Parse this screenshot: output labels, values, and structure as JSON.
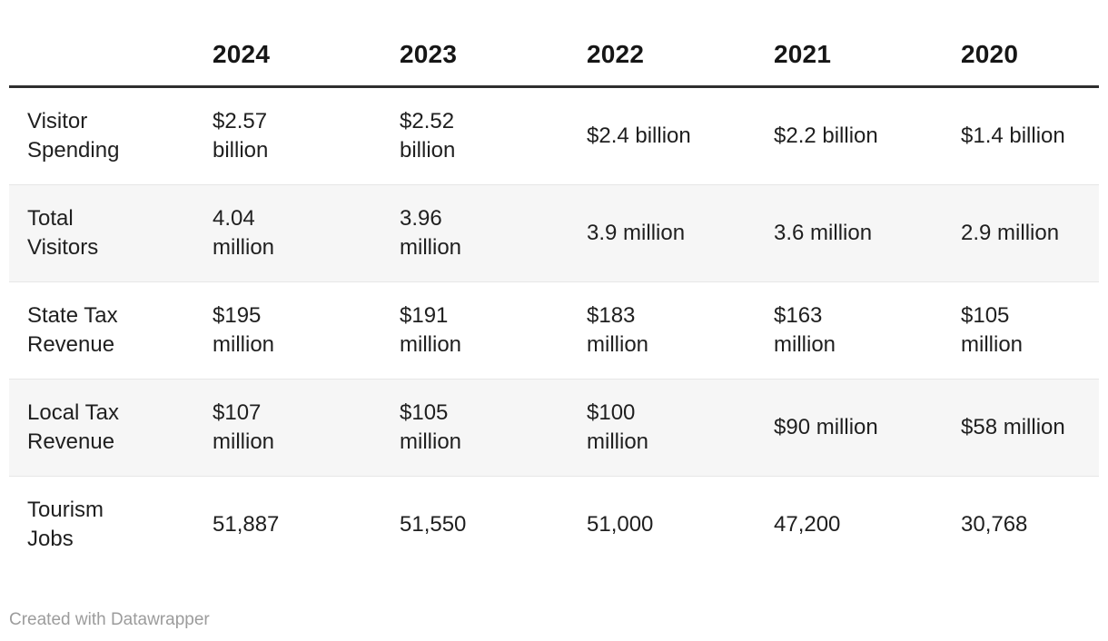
{
  "chart_data": {
    "type": "table",
    "title": "",
    "columns": [
      "",
      "2024",
      "2023",
      "2022",
      "2021",
      "2020"
    ],
    "rows": [
      [
        "Visitor Spending",
        "$2.57 billion",
        "$2.52 billion",
        "$2.4 billion",
        "$2.2 billion",
        "$1.4 billion"
      ],
      [
        "Total Visitors",
        "4.04 million",
        "3.96 million",
        "3.9 million",
        "3.6 million",
        "2.9 million"
      ],
      [
        "State Tax Revenue",
        "$195 million",
        "$191 million",
        "$183 million",
        "$163 million",
        "$105 million"
      ],
      [
        "Local Tax Revenue",
        "$107 million",
        "$105 million",
        "$100 million",
        "$90 million",
        "$58 million"
      ],
      [
        "Tourism Jobs",
        "51,887",
        "51,550",
        "51,000",
        "47,200",
        "30,768"
      ]
    ],
    "layout_hints": {
      "zebra_striping": true,
      "striped_rows": [
        "Total Visitors",
        "Local Tax Revenue"
      ],
      "header_rule": "thick dark line below year headers",
      "alignment": "left"
    }
  },
  "display": {
    "header": {
      "years": [
        "2024",
        "2023",
        "2022",
        "2021",
        "2020"
      ]
    },
    "rows": [
      {
        "label": "Visitor\nSpending",
        "values": [
          "$2.57\nbillion",
          "$2.52\nbillion",
          "$2.4 billion",
          "$2.2 billion",
          "$1.4 billion"
        ]
      },
      {
        "label": "Total\nVisitors",
        "values": [
          "4.04\nmillion",
          "3.96\nmillion",
          "3.9 million",
          "3.6 million",
          "2.9 million"
        ]
      },
      {
        "label": "State Tax\nRevenue",
        "values": [
          "$195\nmillion",
          "$191\nmillion",
          "$183\nmillion",
          "$163\nmillion",
          "$105\nmillion"
        ]
      },
      {
        "label": "Local Tax\nRevenue",
        "values": [
          "$107\nmillion",
          "$105\nmillion",
          "$100\nmillion",
          "$90 million",
          "$58 million"
        ]
      },
      {
        "label": "Tourism\nJobs",
        "values": [
          "51,887",
          "51,550",
          "51,000",
          "47,200",
          "30,768"
        ]
      }
    ]
  },
  "footer": {
    "credit": "Created with Datawrapper"
  },
  "colors": {
    "background": "#ffffff",
    "text": "#1f1f1f",
    "header_text": "#161616",
    "header_rule": "#2e2e2e",
    "row_stripe": "#f6f6f6",
    "row_border": "#e6e6e6",
    "credit_text": "#9c9c9c"
  }
}
